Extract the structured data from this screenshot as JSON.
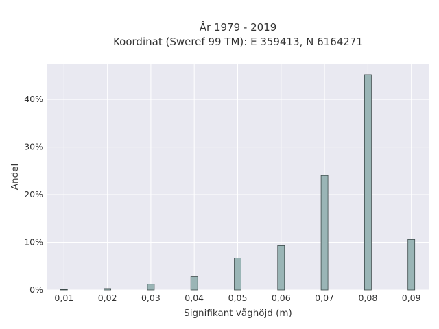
{
  "chart_data": {
    "type": "bar",
    "title_lines": [
      "År 1979 - 2019",
      "Koordinat (Sweref 99 TM): E 359413, N 6164271"
    ],
    "xlabel": "Signifikant våghöjd (m)",
    "ylabel": "Andel",
    "x": [
      0.01,
      0.02,
      0.03,
      0.04,
      0.05,
      0.06,
      0.07,
      0.08,
      0.09
    ],
    "values": [
      0.1,
      0.3,
      1.2,
      2.8,
      6.7,
      9.3,
      24.0,
      45.2,
      10.6
    ],
    "xlim": [
      0.006,
      0.094
    ],
    "ylim": [
      0,
      47.5
    ],
    "x_tick_labels": [
      "0,01",
      "0,02",
      "0,03",
      "0,04",
      "0,05",
      "0,06",
      "0,07",
      "0,08",
      "0,09"
    ],
    "y_ticks": [
      0,
      10,
      20,
      30,
      40
    ],
    "y_tick_labels": [
      "0%",
      "10%",
      "20%",
      "30%",
      "40%"
    ],
    "grid": true,
    "bar_color": "#9ab5b6",
    "bar_edge_color": "#3c4a4a",
    "background_color": "#e9e9f1"
  }
}
